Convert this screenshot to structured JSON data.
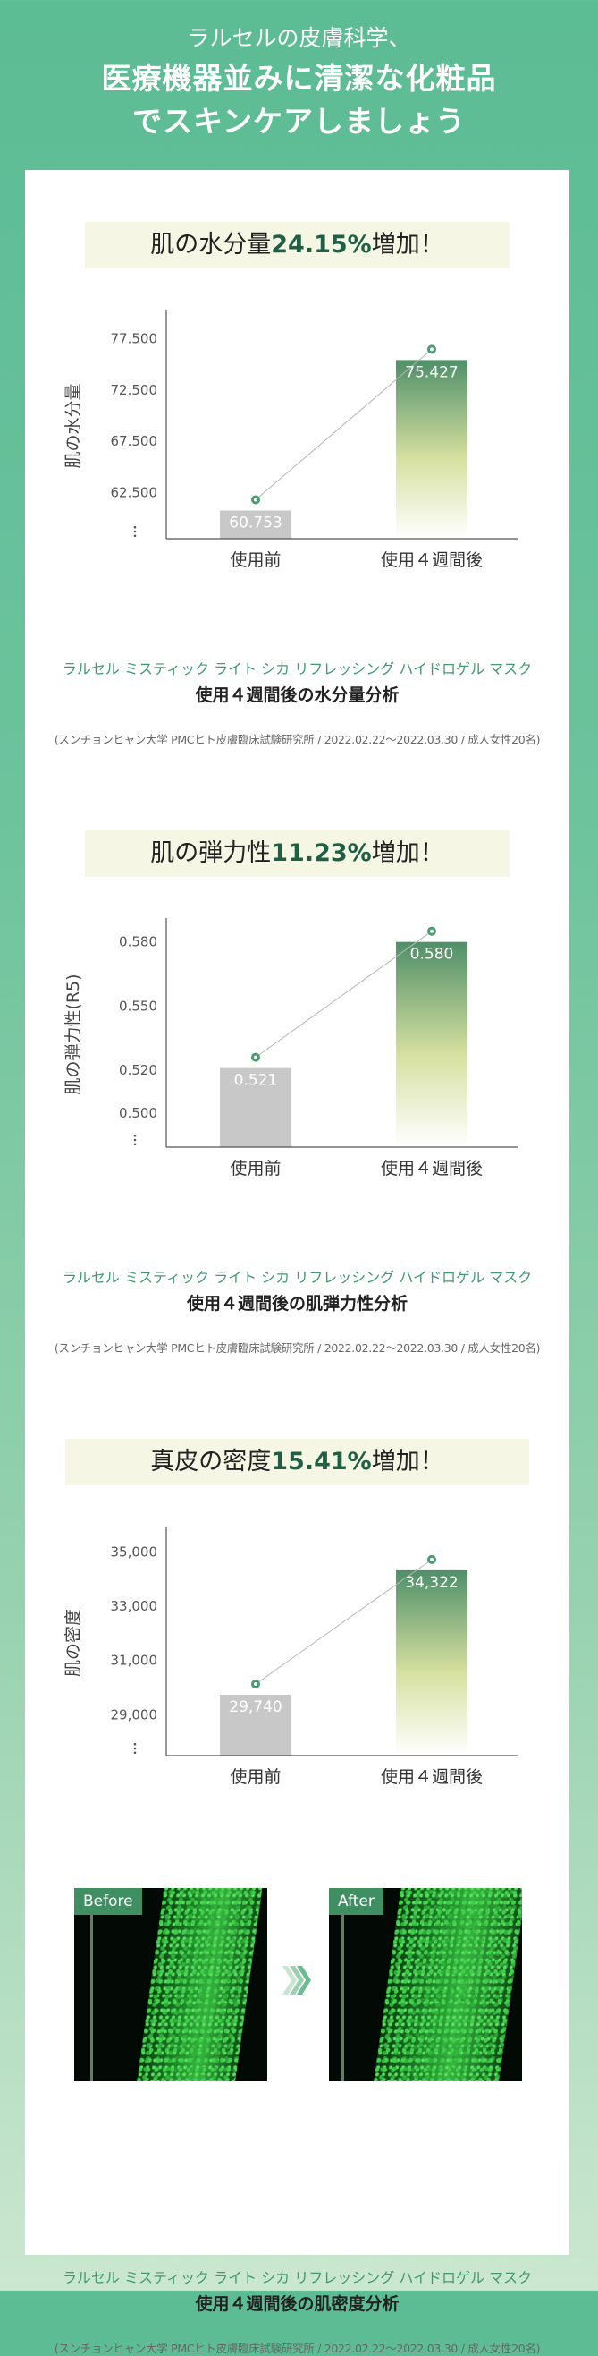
{
  "header": {
    "line1": "ラルセルの皮膚科学、",
    "line2": "医療機器並みに清潔な化粧品",
    "line3": "でスキンケアしましょう"
  },
  "sections": [
    {
      "banner_prefix": "肌の水分量",
      "banner_value": "24.15%",
      "banner_suffix": "増加！",
      "product": "ラルセル ミスティック ライト シカ リフレッシング ハイドロゲル マスク",
      "analysis": "使用４週間後の水分量分析",
      "source": "(スンチョンヒャン大学 PMCヒト皮膚臨床試験研究所 / 2022.02.22～2022.03.30 / 成人女性20名)"
    },
    {
      "banner_prefix": "肌の弾力性",
      "banner_value": "11.23%",
      "banner_suffix": "増加！",
      "product": "ラルセル ミスティック ライト シカ リフレッシング ハイドロゲル マスク",
      "analysis": "使用４週間後の肌弾力性分析",
      "source": "(スンチョンヒャン大学 PMCヒト皮膚臨床試験研究所 / 2022.02.22～2022.03.30 / 成人女性20名)"
    },
    {
      "banner_prefix": "真皮の密度",
      "banner_value": "15.41%",
      "banner_suffix": "増加！",
      "product": "ラルセル ミスティック ライト シカ リフレッシング ハイドロゲル マスク",
      "analysis": "使用４週間後の肌密度分析",
      "source": "(スンチョンヒャン大学 PMCヒト皮膚臨床試験研究所 / 2022.02.22～2022.03.30 / 成人女性20名)",
      "before_label": "Before",
      "after_label": "After"
    }
  ],
  "chart_data": [
    {
      "type": "bar",
      "categories": [
        "使用前",
        "使用４週間後"
      ],
      "values": [
        60.753,
        75.427
      ],
      "value_labels": [
        "60.753",
        "75.427"
      ],
      "ylabel": "肌の水分量",
      "yticks": [
        "77.500",
        "72.500",
        "67.500",
        "62.500"
      ],
      "ytick_values": [
        77.5,
        72.5,
        67.5,
        62.5
      ],
      "ylim": [
        58.0,
        80.0
      ],
      "axis_break": true,
      "colors": {
        "before": "#c8c8c8",
        "after_top": "#4f8f68",
        "after_mid": "#d6e0a0",
        "after_bottom": "#ffffff",
        "marker": "#4a9a72"
      }
    },
    {
      "type": "bar",
      "categories": [
        "使用前",
        "使用４週間後"
      ],
      "values": [
        0.521,
        0.58
      ],
      "value_labels": [
        "0.521",
        "0.580"
      ],
      "ylabel": "肌の弾力性(R5)",
      "yticks": [
        "0.580",
        "0.550",
        "0.520",
        "0.500"
      ],
      "ytick_values": [
        0.58,
        0.55,
        0.52,
        0.5
      ],
      "ylim": [
        0.484,
        0.5895
      ],
      "axis_break": true,
      "colors": {
        "before": "#c8c8c8",
        "after_top": "#4f8f68",
        "after_mid": "#d6e0a0",
        "after_bottom": "#ffffff",
        "marker": "#4a9a72"
      }
    },
    {
      "type": "bar",
      "categories": [
        "使用前",
        "使用４週間後"
      ],
      "values": [
        29740,
        34322
      ],
      "value_labels": [
        "29,740",
        "34,322"
      ],
      "ylabel": "肌の密度",
      "yticks": [
        "35,000",
        "33,000",
        "31,000",
        "29,000"
      ],
      "ytick_values": [
        35000,
        33000,
        31000,
        29000
      ],
      "ylim": [
        27500,
        35800
      ],
      "axis_break": true,
      "colors": {
        "before": "#c8c8c8",
        "after_top": "#4f8f68",
        "after_mid": "#d6e0a0",
        "after_bottom": "#ffffff",
        "marker": "#4a9a72"
      }
    }
  ]
}
